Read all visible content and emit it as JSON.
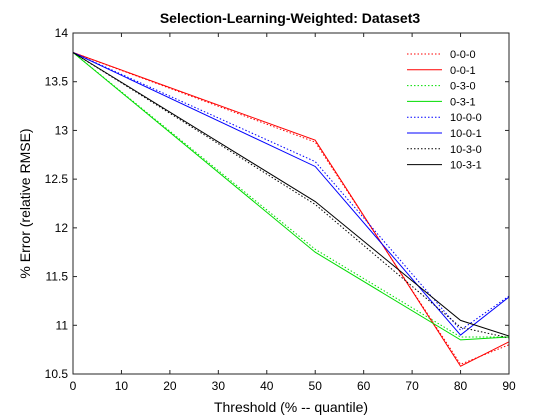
{
  "chart_data": {
    "type": "line",
    "title": "Selection-Learning-Weighted: Dataset3",
    "xlabel": "Threshold (% -- quantile)",
    "ylabel": "% Error (relative RMSE)",
    "xlim": [
      0,
      90
    ],
    "ylim": [
      10.5,
      14
    ],
    "xticks": [
      0,
      10,
      20,
      30,
      40,
      50,
      60,
      70,
      80,
      90
    ],
    "yticks": [
      10.5,
      11,
      11.5,
      12,
      12.5,
      13,
      13.5,
      14
    ],
    "xtick_labels": [
      "0",
      "10",
      "20",
      "30",
      "40",
      "50",
      "60",
      "70",
      "80",
      "90"
    ],
    "ytick_labels": [
      "10.5",
      "11",
      "11.5",
      "12",
      "12.5",
      "13",
      "13.5",
      "14"
    ],
    "grid": false,
    "legend_position": "top-right",
    "x": [
      0,
      50,
      80,
      90
    ],
    "series": [
      {
        "name": "0-0-0",
        "color": "#ff0000",
        "dash": "dotted",
        "values": [
          13.8,
          12.88,
          10.6,
          10.8
        ]
      },
      {
        "name": "0-0-1",
        "color": "#ff0000",
        "dash": "solid",
        "values": [
          13.8,
          12.9,
          10.58,
          10.83
        ]
      },
      {
        "name": "0-3-0",
        "color": "#00dd00",
        "dash": "dotted",
        "values": [
          13.8,
          11.78,
          10.88,
          10.88
        ]
      },
      {
        "name": "0-3-1",
        "color": "#00dd00",
        "dash": "solid",
        "values": [
          13.8,
          11.75,
          10.85,
          10.88
        ]
      },
      {
        "name": "10-0-0",
        "color": "#0000ff",
        "dash": "dotted",
        "values": [
          13.8,
          12.68,
          10.95,
          11.3
        ]
      },
      {
        "name": "10-0-1",
        "color": "#0000ff",
        "dash": "solid",
        "values": [
          13.8,
          12.63,
          10.9,
          11.29
        ]
      },
      {
        "name": "10-3-0",
        "color": "#000000",
        "dash": "dotted",
        "values": [
          13.8,
          12.24,
          10.98,
          10.87
        ]
      },
      {
        "name": "10-3-1",
        "color": "#000000",
        "dash": "solid",
        "values": [
          13.8,
          12.27,
          11.05,
          10.89
        ]
      }
    ]
  }
}
